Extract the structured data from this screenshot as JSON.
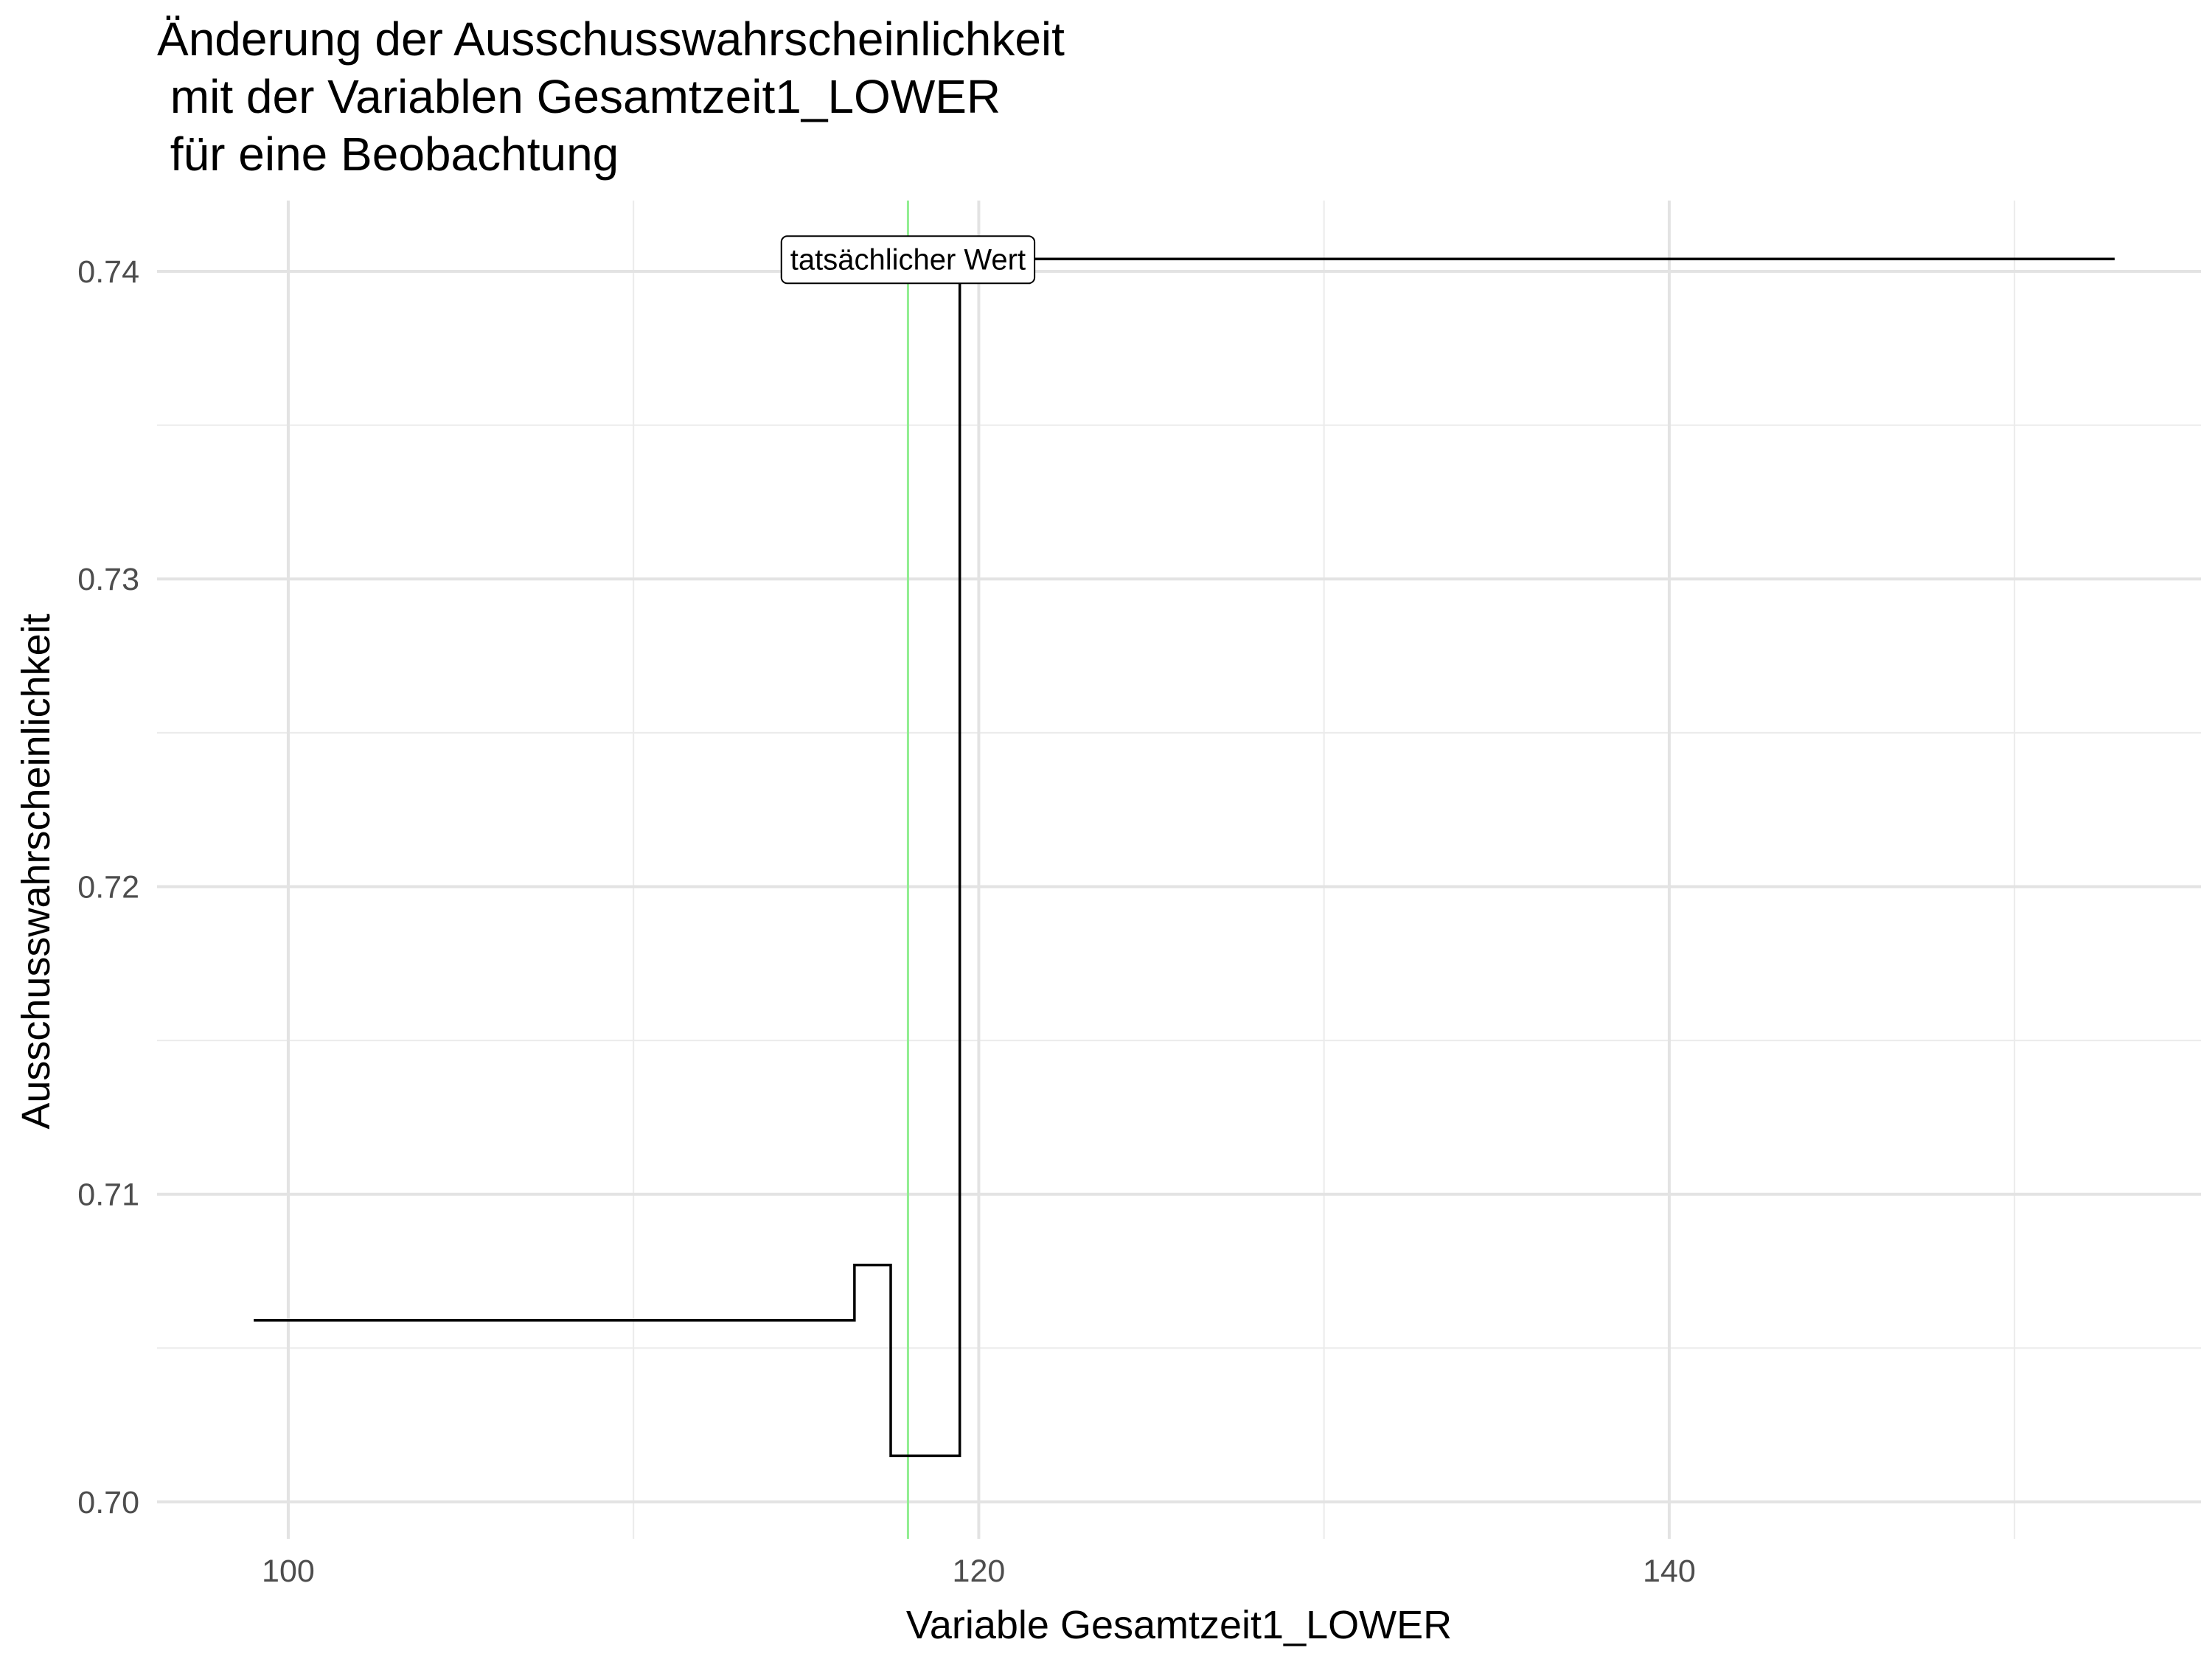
{
  "chart_data": {
    "type": "line",
    "title_lines": [
      "Änderung der Ausschusswahrscheinlichkeit",
      " mit der Variablen Gesamtzeit1_LOWER",
      " für eine Beobachtung"
    ],
    "xlabel": "Variable Gesamtzeit1_LOWER",
    "ylabel": "Ausschusswahrscheinlichkeit",
    "xlim": [
      96.2,
      155.4
    ],
    "ylim": [
      0.6988,
      0.7423
    ],
    "x_ticks": [
      100,
      120,
      140
    ],
    "x_tick_labels": [
      "100",
      "120",
      "140"
    ],
    "x_minor_ticks": [
      110,
      130,
      150
    ],
    "y_ticks": [
      0.7,
      0.71,
      0.72,
      0.73,
      0.74
    ],
    "y_tick_labels": [
      "0.70",
      "0.71",
      "0.72",
      "0.73",
      "0.74"
    ],
    "y_minor_ticks": [
      0.705,
      0.715,
      0.725,
      0.735
    ],
    "grid": true,
    "series": [
      {
        "x": [
          99.0,
          116.4,
          116.4,
          117.45,
          117.45,
          119.45,
          119.45,
          152.9
        ],
        "y": [
          0.7059,
          0.7059,
          0.7077,
          0.7077,
          0.7015,
          0.7015,
          0.7404,
          0.7404
        ],
        "color": "#000000"
      }
    ],
    "reference_line": {
      "x": 117.95,
      "color": "#90ee90"
    },
    "annotation": {
      "text": "tatsächlicher Wert",
      "x": 117.95,
      "y": 0.7404
    }
  }
}
